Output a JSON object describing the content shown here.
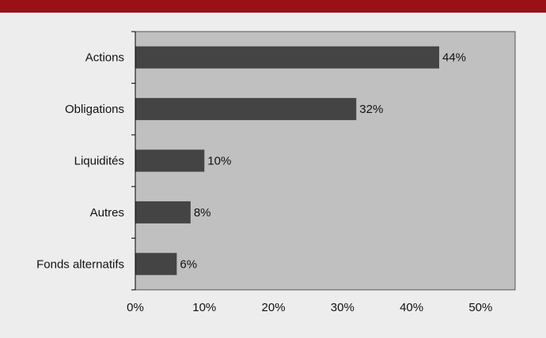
{
  "header": {
    "cut_title": ""
  },
  "chart_data": {
    "type": "bar",
    "orientation": "horizontal",
    "categories": [
      "Actions",
      "Obligations",
      "Liquidités",
      "Autres",
      "Fonds alternatifs"
    ],
    "values": [
      44,
      32,
      10,
      8,
      6
    ],
    "data_labels": [
      "44%",
      "32%",
      "10%",
      "8%",
      "6%"
    ],
    "x_ticks": [
      "0%",
      "10%",
      "20%",
      "30%",
      "40%",
      "50%"
    ],
    "xlim": [
      0,
      55
    ],
    "title": "",
    "xlabel": "",
    "ylabel": "",
    "grid": false,
    "legend": "none",
    "colors": {
      "bar": "#444444",
      "plot_background": "#c0c0c0",
      "header_band": "#9b0f16",
      "page_background": "#ededed"
    }
  }
}
